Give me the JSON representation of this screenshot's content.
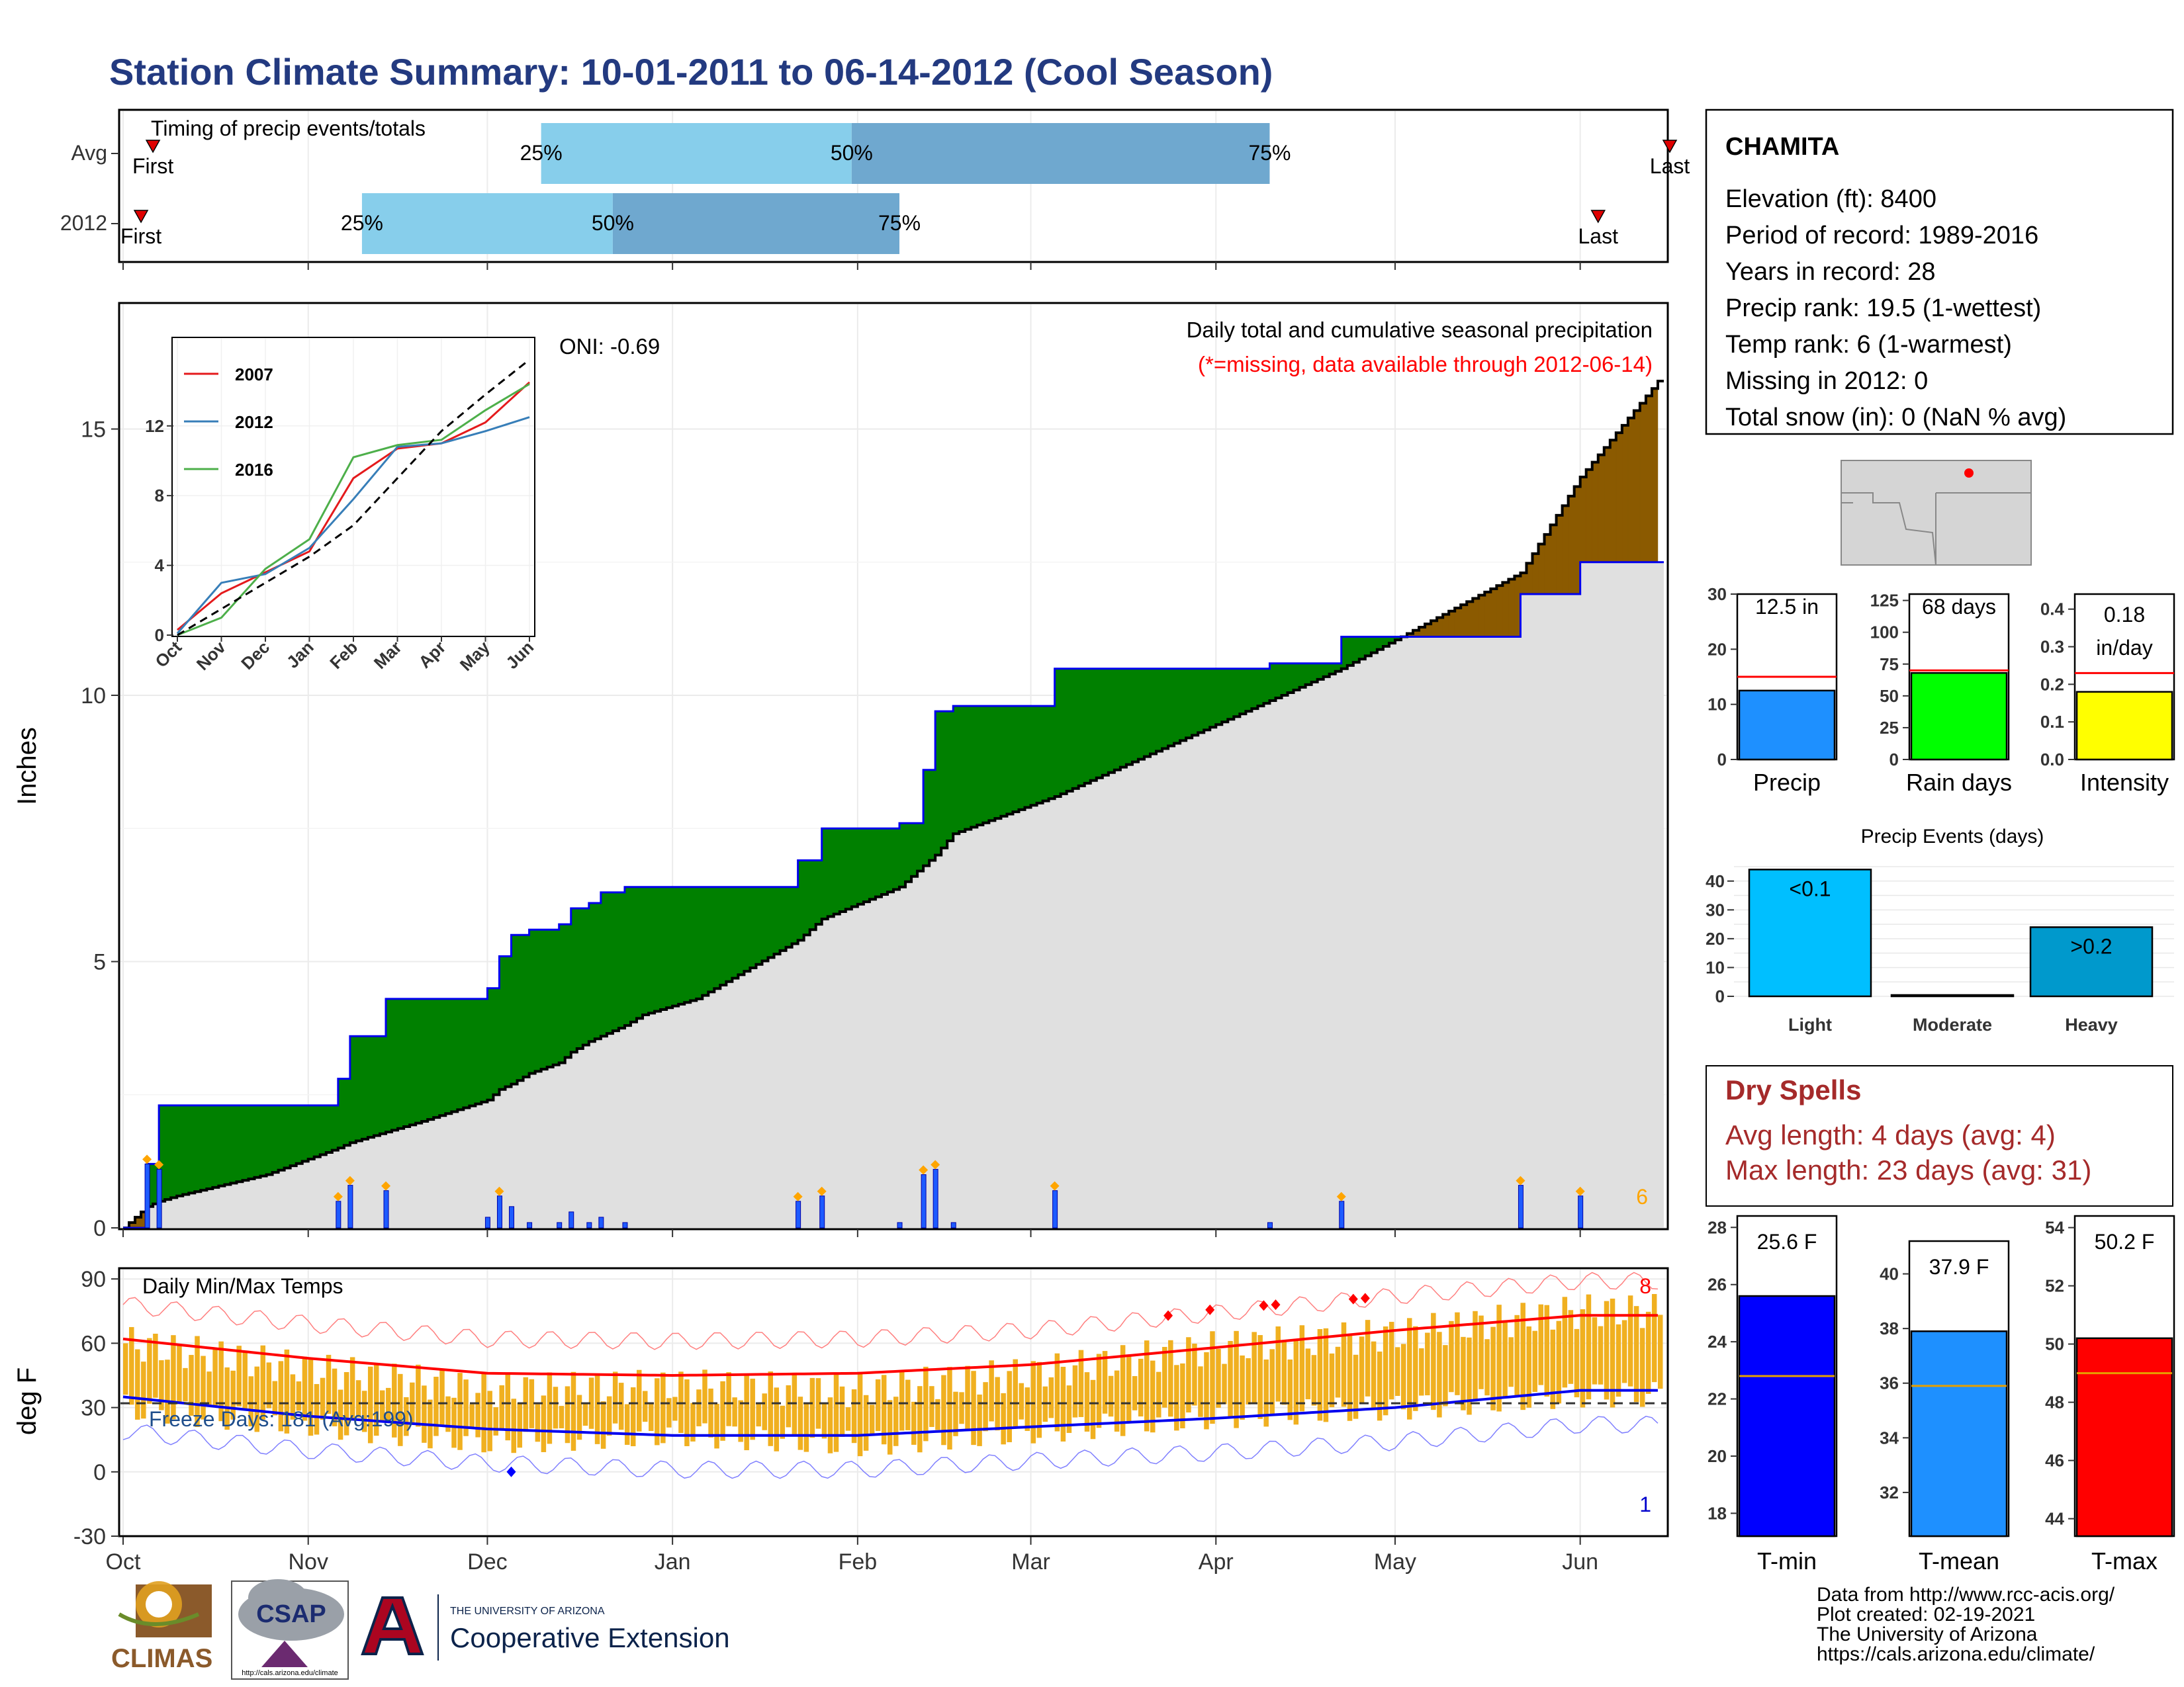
{
  "title": "Station Climate Summary: 10-01-2011 to 06-14-2012 (Cool Season)",
  "colors": {
    "title": "#233a80",
    "precip_bar": "#1e90ff",
    "rain_days_bar": "#00ff00",
    "intensity_bar": "#ffff00",
    "light_bar": "#00bfff",
    "heavy_bar": "#0099cc",
    "tmin_bar": "#0000ff",
    "tmean_bar": "#1e90ff",
    "tmax_bar": "#ff0000",
    "surplus": "#008000",
    "deficit": "#8b5a00",
    "cum_fill": "#e0e0e0",
    "daily_precip": "#0000ff",
    "temp_range": "#f0b020",
    "dry_spells": "#a52a2a"
  },
  "timing": {
    "title": "Timing of precip events/totals",
    "rows": [
      "Avg",
      "2012"
    ],
    "pct_labels": [
      "25%",
      "50%",
      "75%"
    ],
    "first_label": "First",
    "last_label": "Last"
  },
  "cum_panel": {
    "ylabel": "Inches",
    "oni": "ONI: -0.69",
    "subtitle": "Daily total and cumulative seasonal precipitation",
    "missing_note": "(*=missing, data available through 2012-06-14)",
    "corner_count": "6",
    "yticks": [
      "0",
      "5",
      "10",
      "15"
    ]
  },
  "inset": {
    "legend": [
      "2007",
      "2012",
      "2016"
    ],
    "legend_colors": [
      "#e41a1c",
      "#377eb8",
      "#4daf4a"
    ],
    "yticks": [
      "0",
      "4",
      "8",
      "12"
    ],
    "xticks": [
      "Oct",
      "Nov",
      "Dec",
      "Jan",
      "Feb",
      "Mar",
      "Apr",
      "May",
      "Jun"
    ]
  },
  "temp_panel": {
    "title": "Daily Min/Max Temps",
    "ylabel": "deg F",
    "freeze": "Freeze Days: 181 (Avg:199)",
    "yticks": [
      "90",
      "60",
      "30",
      "0",
      "-30"
    ],
    "count_high": "8",
    "count_low": "1"
  },
  "months": [
    "Oct",
    "Nov",
    "Dec",
    "Jan",
    "Feb",
    "Mar",
    "Apr",
    "May",
    "Jun"
  ],
  "station": {
    "name": "CHAMITA",
    "lines": [
      "Elevation (ft): 8400",
      "Period of record: 1989-2016",
      "Years in record: 28",
      "Precip rank: 19.5 (1-wettest)",
      "Temp rank: 6 (1-warmest)",
      "Missing in 2012: 0",
      "Total snow (in): 0 (NaN % avg)"
    ]
  },
  "summary_bars": {
    "precip": {
      "label": "Precip",
      "value_text": "12.5 in",
      "yticks": [
        "0",
        "10",
        "20",
        "30"
      ]
    },
    "rain_days": {
      "label": "Rain days",
      "value_text": "68 days",
      "yticks": [
        "0",
        "25",
        "50",
        "75",
        "100",
        "125"
      ]
    },
    "intensity": {
      "label": "Intensity",
      "value_text_1": "0.18",
      "value_text_2": "in/day",
      "yticks": [
        "0.0",
        "0.1",
        "0.2",
        "0.3",
        "0.4"
      ]
    }
  },
  "events": {
    "title": "Precip Events (days)",
    "yticks": [
      "0",
      "10",
      "20",
      "30",
      "40"
    ],
    "categories": [
      "Light",
      "Moderate",
      "Heavy"
    ],
    "bar_labels": [
      "<0.1",
      "",
      ">0.2"
    ]
  },
  "dry_spells": {
    "title": "Dry Spells",
    "avg": "Avg length: 4 days (avg: 4)",
    "max": "Max length: 23 days (avg: 31)"
  },
  "temp_bars": {
    "tmin": {
      "label": "T-min",
      "value_text": "25.6 F",
      "yticks": [
        "18",
        "20",
        "22",
        "24",
        "26",
        "28"
      ]
    },
    "tmean": {
      "label": "T-mean",
      "value_text": "37.9 F",
      "yticks": [
        "32",
        "34",
        "36",
        "38",
        "40"
      ]
    },
    "tmax": {
      "label": "T-max",
      "value_text": "50.2 F",
      "yticks": [
        "44",
        "46",
        "48",
        "50",
        "52",
        "54"
      ]
    }
  },
  "footer": {
    "lines": [
      "Data from http://www.rcc-acis.org/",
      "Plot created: 02-19-2021",
      "The University of Arizona",
      "https://cals.arizona.edu/climate/"
    ],
    "climas": "CLIMAS",
    "csap": "CSAP",
    "csap_url": "http://cals.arizona.edu/climate",
    "ua_small": "THE UNIVERSITY OF ARIZONA",
    "ua_big": "Cooperative Extension"
  },
  "chart_data": [
    {
      "type": "bar",
      "name": "timing",
      "categories": [
        "Avg",
        "2012"
      ],
      "quartile_dates": [
        [
          "2011-12-10",
          "2012-01-31",
          "2012-04-10"
        ],
        [
          "2011-11-10",
          "2011-12-22",
          "2012-02-08"
        ]
      ],
      "first_dates": [
        "2011-10-06",
        "2011-10-04"
      ],
      "last_dates": [
        "2012-06-16",
        "2012-06-04"
      ]
    },
    {
      "type": "area",
      "name": "cumulative_precip",
      "x": [
        "2011-10-01",
        "2011-10-05",
        "2011-10-07",
        "2011-10-10",
        "2011-10-25",
        "2011-11-06",
        "2011-11-08",
        "2011-11-14",
        "2011-11-20",
        "2011-12-01",
        "2011-12-03",
        "2011-12-05",
        "2011-12-08",
        "2011-12-13",
        "2011-12-15",
        "2011-12-18",
        "2011-12-20",
        "2011-12-24",
        "2011-12-27",
        "2012-01-05",
        "2012-01-22",
        "2012-01-26",
        "2012-02-08",
        "2012-02-12",
        "2012-02-14",
        "2012-02-17",
        "2012-03-05",
        "2012-04-10",
        "2012-04-22",
        "2012-05-22",
        "2012-06-01",
        "2012-06-14"
      ],
      "series": [
        {
          "name": "2012",
          "values": [
            0.0,
            1.2,
            2.3,
            2.3,
            2.3,
            2.8,
            3.6,
            4.3,
            4.3,
            4.5,
            5.1,
            5.5,
            5.6,
            5.7,
            6.0,
            6.1,
            6.3,
            6.4,
            6.4,
            6.4,
            6.9,
            7.5,
            7.6,
            8.6,
            9.7,
            9.8,
            10.5,
            10.6,
            11.1,
            11.9,
            12.5,
            12.5
          ]
        },
        {
          "name": "Avg",
          "values": [
            0.0,
            0.4,
            0.5,
            0.6,
            1.0,
            1.5,
            1.6,
            1.8,
            2.0,
            2.4,
            2.6,
            2.7,
            2.9,
            3.1,
            3.3,
            3.5,
            3.6,
            3.8,
            4.0,
            4.3,
            5.4,
            5.8,
            6.4,
            6.8,
            7.0,
            7.4,
            8.1,
            9.9,
            10.5,
            12.3,
            14.1,
            15.9
          ]
        }
      ],
      "ylabel": "Inches",
      "ylim": [
        0,
        17.5
      ]
    },
    {
      "type": "line",
      "name": "inset_analog_years",
      "categories": [
        "Oct",
        "Nov",
        "Dec",
        "Jan",
        "Feb",
        "Mar",
        "Apr",
        "May",
        "Jun"
      ],
      "series": [
        {
          "name": "2007",
          "values": [
            0.3,
            2.4,
            3.6,
            4.8,
            9.0,
            10.7,
            11.0,
            12.2,
            14.5
          ]
        },
        {
          "name": "2012",
          "values": [
            0.1,
            3.0,
            3.5,
            5.0,
            7.8,
            10.8,
            11.0,
            11.7,
            12.5
          ]
        },
        {
          "name": "2016",
          "values": [
            0.0,
            1.0,
            3.8,
            5.5,
            10.2,
            10.9,
            11.2,
            12.9,
            14.4
          ]
        },
        {
          "name": "Avg",
          "values": [
            0.0,
            1.5,
            3.0,
            4.5,
            6.3,
            9.0,
            11.7,
            13.8,
            15.8
          ]
        }
      ],
      "ylim": [
        0,
        17
      ]
    },
    {
      "type": "line",
      "name": "daily_temps",
      "categories": [
        "Oct",
        "Nov",
        "Dec",
        "Jan",
        "Feb",
        "Mar",
        "Apr",
        "May",
        "Jun"
      ],
      "series": [
        {
          "name": "Avg max",
          "values": [
            62,
            53,
            46,
            45,
            46,
            50,
            58,
            66,
            73
          ]
        },
        {
          "name": "Avg min",
          "values": [
            35,
            26,
            20,
            17,
            17,
            21,
            25,
            30,
            38
          ]
        },
        {
          "name": "2012 max",
          "values": [
            60,
            48,
            38,
            40,
            38,
            46,
            58,
            64,
            75
          ]
        },
        {
          "name": "2012 min",
          "values": [
            30,
            22,
            14,
            18,
            13,
            19,
            26,
            30,
            36
          ]
        }
      ],
      "freeze_line": 32,
      "ylabel": "deg F",
      "ylim": [
        -30,
        95
      ]
    },
    {
      "type": "bar",
      "name": "season_totals",
      "categories": [
        "Precip",
        "Rain days",
        "Intensity"
      ],
      "values": [
        12.5,
        68,
        0.18
      ],
      "averages": [
        15.0,
        70,
        0.23
      ]
    },
    {
      "type": "bar",
      "name": "precip_events",
      "categories": [
        "Light",
        "Moderate",
        "Heavy"
      ],
      "values": [
        44,
        0,
        24
      ],
      "ylim": [
        0,
        45
      ]
    },
    {
      "type": "bar",
      "name": "season_temps",
      "categories": [
        "T-min",
        "T-mean",
        "T-max"
      ],
      "values": [
        25.6,
        37.9,
        50.2
      ],
      "averages": [
        22.8,
        35.9,
        49.0
      ]
    }
  ]
}
